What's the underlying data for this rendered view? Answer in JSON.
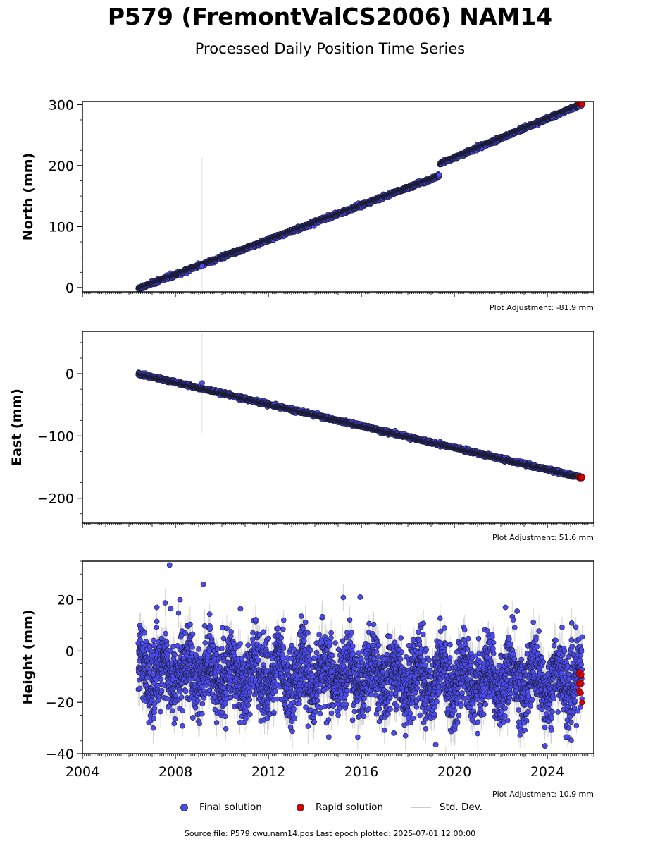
{
  "header": {
    "title": "P579 (FremontValCS2006) NAM14",
    "subtitle": "Processed Daily Position Time Series"
  },
  "footer": {
    "text": "Source file: P579.cwu.nam14.pos  Last epoch plotted: 2025-07-01 12:00:00"
  },
  "legend": {
    "final": "Final solution",
    "rapid": "Rapid solution",
    "std": "Std. Dev."
  },
  "colors": {
    "final": "#4b4bf0",
    "rapid": "#e00000",
    "std": "#bbbbbb",
    "edge": "#1a1a2e"
  },
  "chart_data": [
    {
      "type": "scatter",
      "ylabel": "North (mm)",
      "adjustment_label": "Plot Adjustment: -81.9 mm",
      "xlim": [
        2004.0,
        2026.0
      ],
      "ylim": [
        -7,
        305
      ],
      "yticks": [
        0,
        100,
        200,
        300
      ],
      "xticks": [
        2004,
        2008,
        2012,
        2016,
        2020,
        2024
      ],
      "show_xtick_labels": false,
      "segments": [
        {
          "x0": 2006.4,
          "x1": 2019.35,
          "y0": -1.5,
          "y1": 183
        },
        {
          "x0": 2019.38,
          "x1": 2025.5,
          "y0": 203,
          "y1": 301
        }
      ],
      "noise_mm": 1.5,
      "std_mm": 1.0,
      "outliers": [
        {
          "x": 2009.15,
          "y": 35,
          "err": 178
        }
      ],
      "rapid": {
        "x0": 2025.35,
        "x1": 2025.5,
        "y": 301
      }
    },
    {
      "type": "scatter",
      "ylabel": "East (mm)",
      "adjustment_label": "Plot Adjustment: 51.6 mm",
      "xlim": [
        2004.0,
        2026.0
      ],
      "ylim": [
        -240,
        68
      ],
      "yticks": [
        0,
        -100,
        -200
      ],
      "xticks": [
        2004,
        2008,
        2012,
        2016,
        2020,
        2024
      ],
      "show_xtick_labels": false,
      "segments": [
        {
          "x0": 2006.4,
          "x1": 2025.5,
          "y0": 0,
          "y1": -167
        }
      ],
      "noise_mm": 1.4,
      "std_mm": 1.0,
      "outliers": [
        {
          "x": 2009.15,
          "y": -15,
          "err": 80
        }
      ],
      "rapid": {
        "x0": 2025.35,
        "x1": 2025.5,
        "y": -167
      }
    },
    {
      "type": "scatter",
      "ylabel": "Height (mm)",
      "adjustment_label": "Plot Adjustment: 10.9 mm",
      "xlim": [
        2004.0,
        2026.0
      ],
      "ylim": [
        -40,
        35
      ],
      "yticks": [
        20,
        0,
        -20,
        -40
      ],
      "xticks": [
        2004,
        2008,
        2012,
        2016,
        2020,
        2024
      ],
      "xtick_labels": [
        "2004",
        "2008",
        "2012",
        "2016",
        "2020",
        "2024"
      ],
      "show_xtick_labels": true,
      "segments": [
        {
          "x0": 2006.4,
          "x1": 2025.5,
          "y0": -8,
          "y1": -12
        }
      ],
      "noise_mm": 7,
      "std_mm": 5,
      "seasonal_mm": 5,
      "outliers": [
        {
          "x": 2007.75,
          "y": 33.5
        },
        {
          "x": 2009.2,
          "y": 26
        },
        {
          "x": 2015.95,
          "y": 21
        },
        {
          "x": 2008.2,
          "y": 20
        },
        {
          "x": 2022.2,
          "y": 17
        },
        {
          "x": 2007.2,
          "y": 17
        },
        {
          "x": 2007.8,
          "y": 16.5
        },
        {
          "x": 2010.8,
          "y": 16.5
        },
        {
          "x": 2022.7,
          "y": 15.5
        },
        {
          "x": 2014.5,
          "y": -28
        },
        {
          "x": 2014.6,
          "y": -33.5
        },
        {
          "x": 2024.8,
          "y": -33.5
        },
        {
          "x": 2017.4,
          "y": -32
        },
        {
          "x": 2019.2,
          "y": -36.5
        },
        {
          "x": 2023.9,
          "y": -37
        },
        {
          "x": 2008.75,
          "y": -26
        },
        {
          "x": 2023.0,
          "y": -28
        }
      ],
      "rapid": {
        "x0": 2025.35,
        "x1": 2025.5,
        "y": -15,
        "spread": 7
      }
    }
  ]
}
